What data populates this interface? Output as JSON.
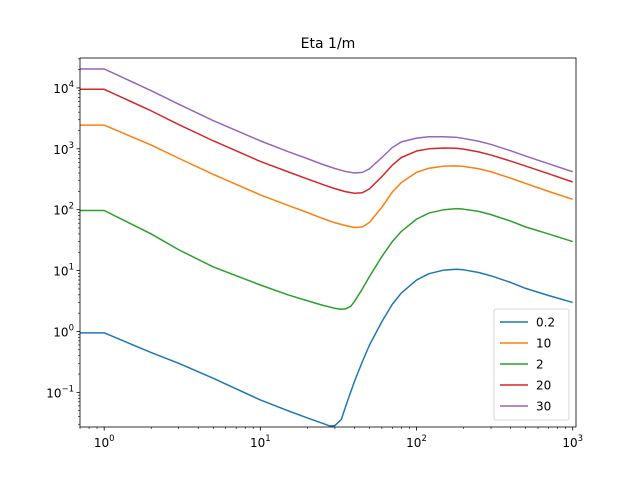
{
  "chart_data": {
    "type": "line",
    "title": "Eta 1/m",
    "xlabel": "",
    "ylabel": "",
    "x_scale": "log",
    "y_scale": "log",
    "xlim": [
      0.7,
      1050
    ],
    "ylim": [
      0.027,
      31000
    ],
    "x_ticks": [
      {
        "value": 1,
        "base": "10",
        "exp": "0"
      },
      {
        "value": 10,
        "base": "10",
        "exp": "1"
      },
      {
        "value": 100,
        "base": "10",
        "exp": "2"
      },
      {
        "value": 1000,
        "base": "10",
        "exp": "3"
      }
    ],
    "y_ticks": [
      {
        "value": 0.1,
        "base": "10",
        "exp": "−1"
      },
      {
        "value": 1,
        "base": "10",
        "exp": "0"
      },
      {
        "value": 10,
        "base": "10",
        "exp": "1"
      },
      {
        "value": 100,
        "base": "10",
        "exp": "2"
      },
      {
        "value": 1000,
        "base": "10",
        "exp": "3"
      },
      {
        "value": 10000,
        "base": "10",
        "exp": "4"
      }
    ],
    "grid": false,
    "legend_position": "lower-right",
    "series": [
      {
        "name": "0.2",
        "color": "#1f77b4",
        "x": [
          0.7,
          1,
          2,
          3,
          5,
          10,
          15,
          20,
          25,
          28,
          30,
          33,
          36,
          40,
          45,
          50,
          60,
          70,
          80,
          100,
          120,
          150,
          180,
          200,
          250,
          300,
          400,
          500,
          700,
          1000
        ],
        "y": [
          0.95,
          0.95,
          0.45,
          0.3,
          0.17,
          0.075,
          0.05,
          0.038,
          0.031,
          0.028,
          0.0285,
          0.036,
          0.07,
          0.15,
          0.32,
          0.6,
          1.45,
          2.8,
          4.3,
          7.0,
          8.9,
          10.2,
          10.5,
          10.3,
          9.3,
          8.2,
          6.4,
          5.1,
          3.9,
          3.0
        ]
      },
      {
        "name": "10",
        "color": "#ff7f0e",
        "x": [
          0.7,
          1,
          2,
          3,
          5,
          10,
          15,
          20,
          25,
          30,
          35,
          40,
          45,
          50,
          60,
          70,
          80,
          100,
          120,
          150,
          180,
          200,
          250,
          300,
          400,
          500,
          700,
          1000
        ],
        "y": [
          2450,
          2450,
          1150,
          700,
          380,
          175,
          118,
          90,
          72,
          61,
          55,
          51,
          52,
          62,
          110,
          195,
          280,
          410,
          480,
          520,
          525,
          515,
          470,
          420,
          330,
          270,
          200,
          148
        ]
      },
      {
        "name": "2",
        "color": "#2ca02c",
        "x": [
          0.7,
          1,
          2,
          3,
          5,
          10,
          15,
          20,
          25,
          30,
          33,
          35,
          38,
          40,
          45,
          50,
          60,
          70,
          80,
          100,
          120,
          150,
          180,
          200,
          250,
          300,
          400,
          500,
          700,
          1000
        ],
        "y": [
          97,
          97,
          40,
          22,
          11.5,
          5.8,
          4.0,
          3.2,
          2.7,
          2.4,
          2.32,
          2.35,
          2.6,
          3.1,
          5.0,
          8.0,
          17,
          30,
          44,
          70,
          88,
          100,
          104,
          102,
          94,
          83,
          65,
          52,
          40,
          30
        ]
      },
      {
        "name": "20",
        "color": "#d62728",
        "x": [
          0.7,
          1,
          2,
          3,
          5,
          10,
          15,
          20,
          25,
          30,
          35,
          40,
          45,
          50,
          60,
          70,
          80,
          100,
          120,
          150,
          180,
          200,
          250,
          300,
          400,
          500,
          700,
          1000
        ],
        "y": [
          9500,
          9500,
          4200,
          2500,
          1350,
          620,
          420,
          320,
          260,
          222,
          198,
          186,
          190,
          220,
          350,
          540,
          720,
          920,
          1000,
          1030,
          1020,
          990,
          890,
          790,
          630,
          520,
          390,
          285
        ]
      },
      {
        "name": "30",
        "color": "#9467bd",
        "x": [
          0.7,
          1,
          2,
          3,
          5,
          10,
          15,
          20,
          25,
          30,
          35,
          40,
          45,
          50,
          60,
          70,
          80,
          100,
          120,
          150,
          180,
          200,
          250,
          300,
          400,
          500,
          700,
          1000
        ],
        "y": [
          20500,
          20500,
          9000,
          5400,
          2900,
          1350,
          900,
          690,
          555,
          475,
          425,
          400,
          410,
          470,
          720,
          1050,
          1300,
          1500,
          1580,
          1580,
          1540,
          1480,
          1330,
          1180,
          930,
          760,
          570,
          420
        ]
      }
    ]
  }
}
